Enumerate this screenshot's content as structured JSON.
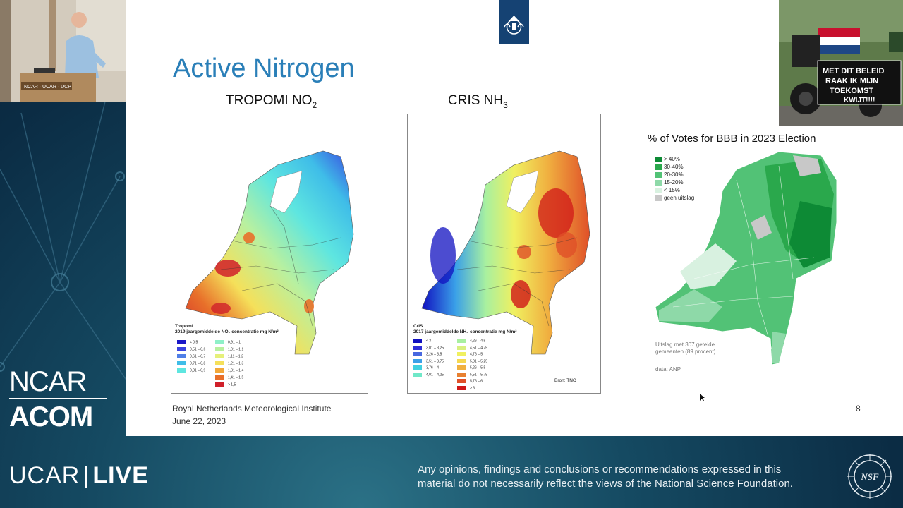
{
  "brand": {
    "ncar": "NCAR",
    "acom": "ACOM",
    "ucar": "UCAR",
    "live": "LIVE",
    "nsf_logo": "NSF",
    "disclaimer_line1": "Any opinions, findings and conclusions or recommendations expressed in this",
    "disclaimer_line2": "material do not necessarily reflect the views of the National Science Foundation."
  },
  "speaker_cam": {
    "podium_label": "NCAR · UCAR · UCP"
  },
  "slide": {
    "title": "Active Nitrogen",
    "map1": {
      "caption_main": "TROPOMI NO",
      "caption_sub": "2",
      "legend_title1": "Tropomi",
      "legend_title2": "2019 jaargemiddelde NO₂ concentratie mg N/m²",
      "legend_left": [
        "< 0,5",
        "0,51 – 0,6",
        "0,61 – 0,7",
        "0,71 – 0,8",
        "0,81 – 0,9"
      ],
      "legend_right": [
        "0,91 – 1",
        "1,01 – 1,1",
        "1,11 – 1,2",
        "1,21 – 1,3",
        "1,31 – 1,4",
        "1,41 – 1,5",
        "> 1,5"
      ]
    },
    "map2": {
      "caption_main": "CRIS NH",
      "caption_sub": "3",
      "legend_title1": "CrIS",
      "legend_title2": "2017 jaargemiddelde NH₃ concentratie mg N/m²",
      "legend_left": [
        "< 3",
        "3,01 – 3,25",
        "3,26 – 3,5",
        "3,51 – 3,75",
        "3,76 – 4",
        "4,01 – 4,25"
      ],
      "legend_right": [
        "4,26 – 4,5",
        "4,51 – 4,75",
        "4,76 – 5",
        "5,01 – 5,25",
        "5,26 – 5,5",
        "5,51 – 5,75",
        "5,76 – 6",
        "> 6"
      ],
      "source": "Bron: TNO"
    },
    "bbb": {
      "title": "% of Votes for BBB in 2023 Election",
      "legend": [
        "> 40%",
        "30-40%",
        "20-30%",
        "15-20%",
        "< 15%",
        "geen uitslag"
      ],
      "note1": "Uitslag met 307 getelde",
      "note2": "gemeenten (89 procent)",
      "source": "data: ANP"
    },
    "footer_org": "Royal Netherlands Meteorological Institute",
    "footer_date": "June 22, 2023",
    "page_number": "8"
  },
  "photo": {
    "sign_line1": "MET DIT BELEID",
    "sign_line2": "RAAK IK MIJN",
    "sign_line3": "TOEKOMST",
    "sign_line4": "KWIJT!!!!"
  },
  "colors": {
    "title_blue": "#2a7fb8",
    "no2_scale": [
      "#1a17c8",
      "#3a43e0",
      "#4f7fe8",
      "#3fbde8",
      "#5ee6e0",
      "#8ff0c8",
      "#b8f0a0",
      "#e6f07a",
      "#f5e05a",
      "#f2a83a",
      "#e8702a",
      "#d0202a"
    ],
    "nh3_scale": [
      "#1010c0",
      "#3030d8",
      "#4868e0",
      "#3aa0e8",
      "#40d0e0",
      "#70e8c8",
      "#a8f0a0",
      "#d8f080",
      "#f0f060",
      "#f5d850",
      "#f0b040",
      "#e88030",
      "#e05028",
      "#d01818"
    ],
    "bbb_scale": [
      "#0d8a35",
      "#2aa84c",
      "#52c276",
      "#8ed9a8",
      "#d8f1e0",
      "#c8c8c8"
    ]
  }
}
